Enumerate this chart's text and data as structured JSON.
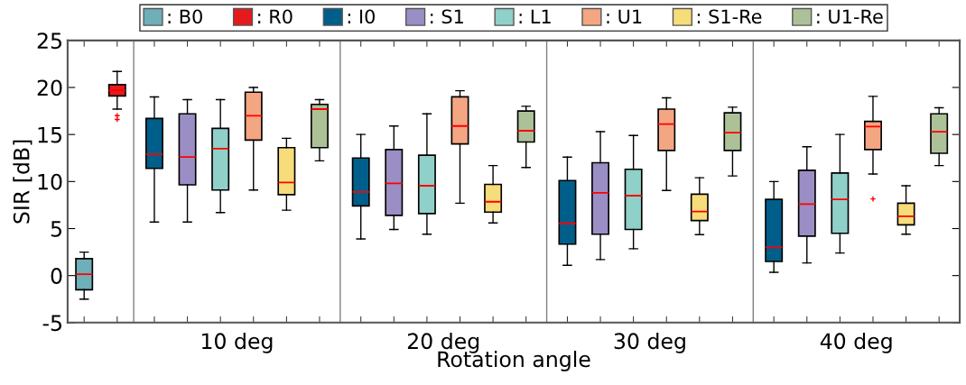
{
  "chart_data": {
    "type": "box",
    "xlabel": "Rotation angle",
    "ylabel": "SIR [dB]",
    "categories": [
      null,
      "10 deg",
      "20 deg",
      "30 deg",
      "40 deg"
    ],
    "ylim": [
      -5,
      25
    ],
    "yticks": [
      -5,
      0,
      5,
      10,
      15,
      20,
      25
    ],
    "legend": "top",
    "grid": false,
    "series": [
      {
        "name": ": B0",
        "color": "#6fafb8",
        "boxes": [
          {
            "low": -2.5,
            "q1": -1.5,
            "median": 0.15,
            "q3": 1.8,
            "high": 2.5
          },
          null,
          null,
          null,
          null
        ]
      },
      {
        "name": ": R0",
        "color": "#e41a1c",
        "boxes": [
          {
            "low": 17.7,
            "q1": 19.1,
            "median": 19.7,
            "q3": 20.3,
            "high": 21.7,
            "outliers": [
              17.0,
              16.6
            ]
          },
          null,
          null,
          null,
          null
        ]
      },
      {
        "name": ": I0",
        "color": "#005f8a",
        "boxes": [
          null,
          {
            "low": 5.7,
            "q1": 11.4,
            "median": 12.9,
            "q3": 16.7,
            "high": 19.0
          },
          {
            "low": 3.9,
            "q1": 7.4,
            "median": 8.9,
            "q3": 12.5,
            "high": 15.0
          },
          {
            "low": 1.1,
            "q1": 3.35,
            "median": 5.55,
            "q3": 10.1,
            "high": 12.6
          },
          {
            "low": 0.35,
            "q1": 1.5,
            "median": 3.0,
            "q3": 8.1,
            "high": 10.0
          }
        ]
      },
      {
        "name": ": S1",
        "color": "#9b8ec4",
        "boxes": [
          null,
          {
            "low": 5.7,
            "q1": 9.65,
            "median": 12.6,
            "q3": 17.2,
            "high": 18.7
          },
          {
            "low": 4.9,
            "q1": 6.4,
            "median": 9.8,
            "q3": 13.4,
            "high": 15.9
          },
          {
            "low": 1.7,
            "q1": 4.4,
            "median": 8.8,
            "q3": 12.0,
            "high": 15.3
          },
          {
            "low": 1.35,
            "q1": 4.2,
            "median": 7.6,
            "q3": 11.2,
            "high": 13.7
          }
        ]
      },
      {
        "name": ": L1",
        "color": "#8fd0c8",
        "boxes": [
          null,
          {
            "low": 6.7,
            "q1": 9.1,
            "median": 13.5,
            "q3": 15.65,
            "high": 18.7
          },
          {
            "low": 4.4,
            "q1": 6.6,
            "median": 9.55,
            "q3": 12.8,
            "high": 17.2
          },
          {
            "low": 2.85,
            "q1": 4.9,
            "median": 8.5,
            "q3": 11.3,
            "high": 14.9
          },
          {
            "low": 2.4,
            "q1": 4.5,
            "median": 8.1,
            "q3": 10.9,
            "high": 15.0
          }
        ]
      },
      {
        "name": ": U1",
        "color": "#f4a582",
        "boxes": [
          null,
          {
            "low": 9.1,
            "q1": 14.4,
            "median": 17.0,
            "q3": 19.5,
            "high": 20.0
          },
          {
            "low": 7.7,
            "q1": 14.0,
            "median": 15.9,
            "q3": 19.0,
            "high": 19.65
          },
          {
            "low": 9.05,
            "q1": 13.3,
            "median": 16.1,
            "q3": 17.7,
            "high": 18.9
          },
          {
            "low": 10.8,
            "q1": 13.4,
            "median": 15.85,
            "q3": 16.4,
            "high": 19.05,
            "outliers": [
              8.15
            ]
          }
        ]
      },
      {
        "name": ": S1-Re",
        "color": "#f7dc7a",
        "boxes": [
          null,
          {
            "low": 6.95,
            "q1": 8.6,
            "median": 9.9,
            "q3": 13.6,
            "high": 14.6
          },
          {
            "low": 5.6,
            "q1": 6.75,
            "median": 7.85,
            "q3": 9.7,
            "high": 11.7
          },
          {
            "low": 4.35,
            "q1": 5.85,
            "median": 6.8,
            "q3": 8.65,
            "high": 10.4
          },
          {
            "low": 4.4,
            "q1": 5.4,
            "median": 6.3,
            "q3": 7.7,
            "high": 9.55
          }
        ]
      },
      {
        "name": ": U1-Re",
        "color": "#adc198",
        "boxes": [
          null,
          {
            "low": 12.2,
            "q1": 13.6,
            "median": 17.7,
            "q3": 18.2,
            "high": 18.7
          },
          {
            "low": 11.5,
            "q1": 14.2,
            "median": 15.4,
            "q3": 17.5,
            "high": 18.0
          },
          {
            "low": 10.6,
            "q1": 13.3,
            "median": 15.2,
            "q3": 17.3,
            "high": 17.9
          },
          {
            "low": 11.7,
            "q1": 13.0,
            "median": 15.3,
            "q3": 17.2,
            "high": 17.85
          }
        ]
      }
    ]
  }
}
